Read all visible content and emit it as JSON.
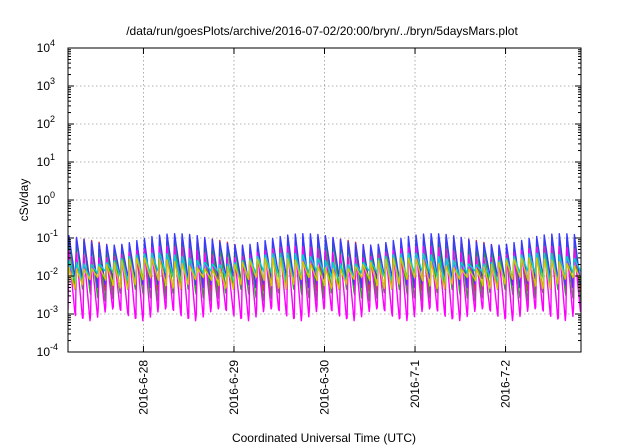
{
  "chart_data": {
    "type": "line",
    "title": "/data/run/goesPlots/archive/2016-07-02/20:00/bryn/../bryn/5daysMars.plot",
    "xlabel": "Coordinated Universal Time (UTC)",
    "ylabel": "cSv/day",
    "yscale": "log",
    "ylim": [
      0.0001,
      10000
    ],
    "yticks": [
      {
        "value": 0.0001,
        "base": "10",
        "exp": "-4"
      },
      {
        "value": 0.001,
        "base": "10",
        "exp": "-3"
      },
      {
        "value": 0.01,
        "base": "10",
        "exp": "-2"
      },
      {
        "value": 0.1,
        "base": "10",
        "exp": "-1"
      },
      {
        "value": 1,
        "base": "10",
        "exp": "0"
      },
      {
        "value": 10,
        "base": "10",
        "exp": "1"
      },
      {
        "value": 100,
        "base": "10",
        "exp": "2"
      },
      {
        "value": 1000,
        "base": "10",
        "exp": "3"
      },
      {
        "value": 10000,
        "base": "10",
        "exp": "4"
      }
    ],
    "xlim": [
      "2016-06-27T04:00",
      "2016-07-02T20:00"
    ],
    "xticks": [
      {
        "value": "2016-06-28T00:00",
        "label": "2016-6-28"
      },
      {
        "value": "2016-06-29T00:00",
        "label": "2016-6-29"
      },
      {
        "value": "2016-06-30T00:00",
        "label": "2016-6-30"
      },
      {
        "value": "2016-07-01T00:00",
        "label": "2016-7-1"
      },
      {
        "value": "2016-07-02T00:00",
        "label": "2016-7-2"
      }
    ],
    "grid": true,
    "cycle_hours": 2,
    "series": [
      {
        "color": "#ff2020",
        "peak": 0.1,
        "trough": 0.006
      },
      {
        "color": "#1ab01a",
        "peak": 0.095,
        "trough": 0.004
      },
      {
        "color": "#3a3aff",
        "peak": 0.13,
        "trough": 0.009
      },
      {
        "color": "#ff00ff",
        "peak": 0.06,
        "trough": 0.0012
      },
      {
        "color": "#00d0d0",
        "peak": 0.04,
        "trough": 0.012
      },
      {
        "color": "#d4c400",
        "peak": 0.03,
        "trough": 0.008
      }
    ]
  }
}
